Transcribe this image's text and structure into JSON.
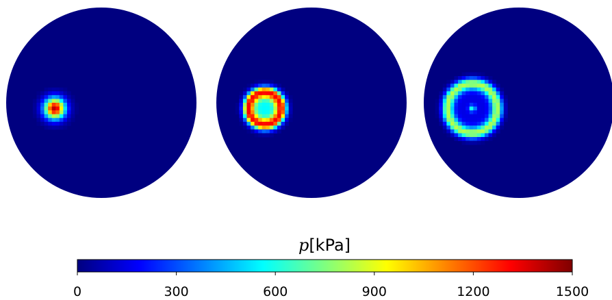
{
  "chart_data": {
    "type": "heatmap",
    "panels": [
      {
        "ring_radius": 0.0,
        "peak": 1420,
        "inner": 1420,
        "center": 1420
      },
      {
        "ring_radius": 0.17,
        "peak": 1320,
        "inner": 560,
        "center": 560
      },
      {
        "ring_radius": 0.26,
        "peak": 830,
        "inner": 150,
        "center": 620
      }
    ],
    "source": {
      "x": -0.49,
      "y": 0.06
    },
    "colorbar": {
      "title_symbol": "p",
      "title_unit": "[kPa]",
      "colormap": "jet",
      "range": [
        0,
        1500
      ],
      "ticks": [
        "0",
        "300",
        "600",
        "900",
        "1200",
        "1500"
      ],
      "colors": [
        "#00007f",
        "#0000ff",
        "#007fff",
        "#00ffff",
        "#7fff7f",
        "#ffff00",
        "#ff7f00",
        "#ff0000",
        "#7f0000"
      ]
    }
  }
}
